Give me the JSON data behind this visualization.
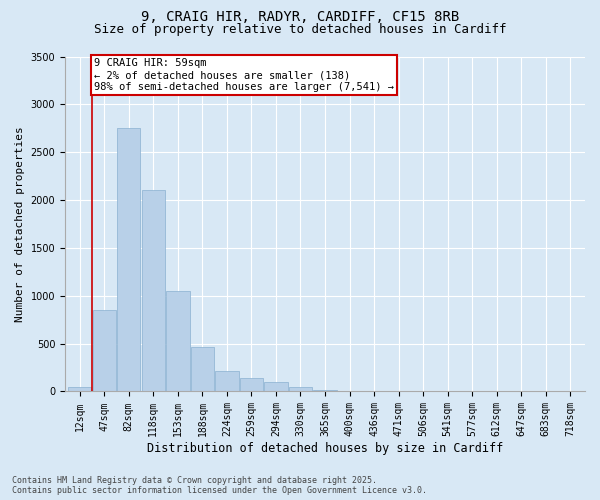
{
  "title_line1": "9, CRAIG HIR, RADYR, CARDIFF, CF15 8RB",
  "title_line2": "Size of property relative to detached houses in Cardiff",
  "xlabel": "Distribution of detached houses by size in Cardiff",
  "ylabel": "Number of detached properties",
  "categories": [
    "12sqm",
    "47sqm",
    "82sqm",
    "118sqm",
    "153sqm",
    "188sqm",
    "224sqm",
    "259sqm",
    "294sqm",
    "330sqm",
    "365sqm",
    "400sqm",
    "436sqm",
    "471sqm",
    "506sqm",
    "541sqm",
    "577sqm",
    "612sqm",
    "647sqm",
    "683sqm",
    "718sqm"
  ],
  "values": [
    50,
    850,
    2750,
    2100,
    1050,
    460,
    215,
    140,
    100,
    50,
    20,
    10,
    5,
    3,
    2,
    1,
    0,
    0,
    0,
    0,
    0
  ],
  "bar_color": "#b8d0e8",
  "bar_edge_color": "#8ab0d0",
  "red_line_x": 0.5,
  "annotation_text": "9 CRAIG HIR: 59sqm\n← 2% of detached houses are smaller (138)\n98% of semi-detached houses are larger (7,541) →",
  "annotation_box_facecolor": "#ffffff",
  "annotation_box_edgecolor": "#cc0000",
  "ylim": [
    0,
    3500
  ],
  "yticks": [
    0,
    500,
    1000,
    1500,
    2000,
    2500,
    3000,
    3500
  ],
  "bg_color": "#d8e8f5",
  "plot_bg_color": "#d8e8f5",
  "footer_line1": "Contains HM Land Registry data © Crown copyright and database right 2025.",
  "footer_line2": "Contains public sector information licensed under the Open Government Licence v3.0.",
  "grid_color": "#ffffff",
  "title_fontsize": 10,
  "subtitle_fontsize": 9,
  "tick_fontsize": 7,
  "ylabel_fontsize": 8,
  "xlabel_fontsize": 8.5,
  "annotation_fontsize": 7.5,
  "footer_fontsize": 6
}
